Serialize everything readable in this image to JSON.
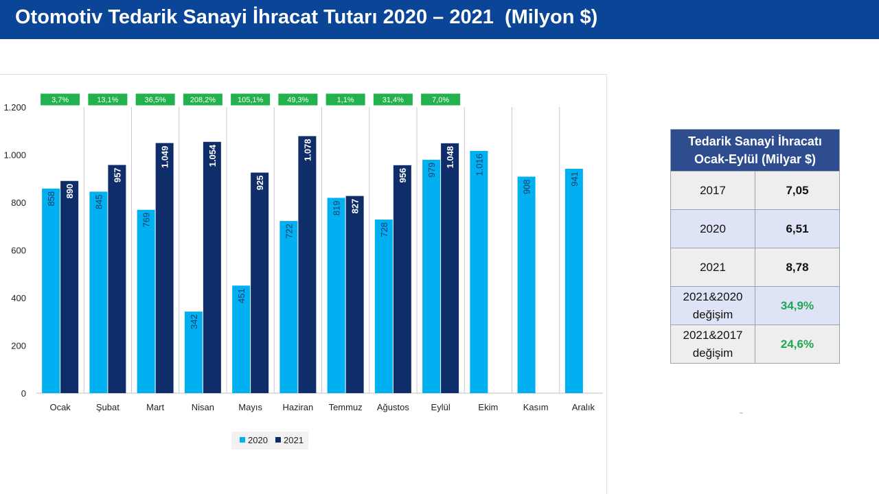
{
  "title": "Otomotiv Tedarik Sanayi İhracat Tutarı 2020 – 2021  (Milyon $)",
  "colors": {
    "title_bg": "#0b4597",
    "series_2020": "#00b0f0",
    "series_2021": "#0e2d69",
    "pct_box": "#22b14c"
  },
  "chart_data": {
    "type": "bar",
    "categories": [
      "Ocak",
      "Şubat",
      "Mart",
      "Nisan",
      "Mayıs",
      "Haziran",
      "Temmuz",
      "Ağustos",
      "Eylül",
      "Ekim",
      "Kasım",
      "Aralık"
    ],
    "series": [
      {
        "name": "2020",
        "values": [
          858,
          845,
          769,
          342,
          451,
          722,
          819,
          728,
          979,
          1016,
          908,
          941
        ],
        "labels": [
          "858",
          "845",
          "769",
          "342",
          "451",
          "722",
          "819",
          "728",
          "979",
          "1.016",
          "908",
          "941"
        ]
      },
      {
        "name": "2021",
        "values": [
          890,
          957,
          1049,
          1054,
          925,
          1078,
          827,
          956,
          1048,
          null,
          null,
          null
        ],
        "labels": [
          "890",
          "957",
          "1.049",
          "1.054",
          "925",
          "1.078",
          "827",
          "956",
          "1.048",
          "",
          "",
          ""
        ]
      }
    ],
    "change_labels": [
      "3,7%",
      "13,1%",
      "36,5%",
      "208,2%",
      "105,1%",
      "49,3%",
      "1,1%",
      "31,4%",
      "7,0%"
    ],
    "yticks": [
      0,
      200,
      400,
      600,
      800,
      1000,
      1200
    ],
    "ytick_labels": [
      "0",
      "200",
      "400",
      "600",
      "800",
      "1.000",
      "1.200"
    ],
    "ylim": [
      0,
      1200
    ],
    "legend_position": "bottom"
  },
  "table": {
    "header": "Tedarik Sanayi İhracatı Ocak-Eylül (Milyar $)",
    "rows": [
      {
        "label": "2017",
        "value": "7,05"
      },
      {
        "label": "2020",
        "value": "6,51"
      },
      {
        "label": "2021",
        "value": "8,78"
      },
      {
        "label": "2021&2020 değişim",
        "value": "34,9%"
      },
      {
        "label": "2021&2017 değişim",
        "value": "24,6%"
      }
    ]
  }
}
